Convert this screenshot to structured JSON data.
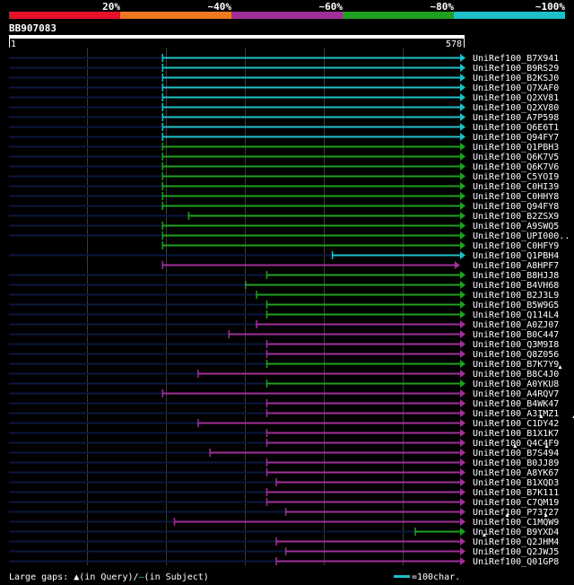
{
  "query_id": "BB907083",
  "query_start": "1",
  "query_end": "578",
  "legend": {
    "bins": [
      {
        "label": "20%",
        "color": "#e8102a"
      },
      {
        "label": "~40%",
        "color": "#f07820"
      },
      {
        "label": "~60%",
        "color": "#a03098"
      },
      {
        "label": "~80%",
        "color": "#20a020"
      },
      {
        "label": "~100%",
        "color": "#20c0c8"
      }
    ]
  },
  "footer": {
    "gaps_label": "Large gaps: ",
    "query_gap_text": "(in Query)/",
    "subject_gap_text": "(in Subject)",
    "scale_text": "=100char."
  },
  "chart_data": {
    "type": "alignment-overview",
    "query_length": 578,
    "colors": {
      "cyan": "#20c0c8",
      "green": "#20a020",
      "purple": "#a03098",
      "prefix": "#0a1840"
    },
    "hits": [
      {
        "label": "UniRef100_B7X941",
        "start": 1,
        "end": 578,
        "match_start": 195,
        "color": "cyan",
        "gaps": []
      },
      {
        "label": "UniRef100_B9RS29",
        "start": 1,
        "end": 578,
        "match_start": 195,
        "color": "cyan",
        "gaps": []
      },
      {
        "label": "UniRef100_B2KSJ0",
        "start": 1,
        "end": 578,
        "match_start": 195,
        "color": "cyan",
        "gaps": []
      },
      {
        "label": "UniRef100_Q7XAF0",
        "start": 1,
        "end": 578,
        "match_start": 195,
        "color": "cyan",
        "gaps": []
      },
      {
        "label": "UniRef100_Q2XV81",
        "start": 1,
        "end": 578,
        "match_start": 195,
        "color": "cyan",
        "gaps": []
      },
      {
        "label": "UniRef100_Q2XV80",
        "start": 1,
        "end": 578,
        "match_start": 195,
        "color": "cyan",
        "gaps": []
      },
      {
        "label": "UniRef100_A7P598",
        "start": 1,
        "end": 578,
        "match_start": 195,
        "color": "cyan",
        "gaps": []
      },
      {
        "label": "UniRef100_Q6E6T1",
        "start": 1,
        "end": 578,
        "match_start": 195,
        "color": "cyan",
        "gaps": []
      },
      {
        "label": "UniRef100_Q94FY7",
        "start": 1,
        "end": 578,
        "match_start": 195,
        "color": "cyan",
        "gaps": []
      },
      {
        "label": "UniRef100_Q1PBH3",
        "start": 1,
        "end": 578,
        "match_start": 195,
        "color": "green",
        "gaps": []
      },
      {
        "label": "UniRef100_Q6K7V5",
        "start": 1,
        "end": 578,
        "match_start": 195,
        "color": "green",
        "gaps": []
      },
      {
        "label": "UniRef100_Q6K7V6",
        "start": 1,
        "end": 578,
        "match_start": 195,
        "color": "green",
        "gaps": []
      },
      {
        "label": "UniRef100_C5YOI9",
        "start": 1,
        "end": 578,
        "match_start": 195,
        "color": "green",
        "gaps": []
      },
      {
        "label": "UniRef100_C0HI39",
        "start": 1,
        "end": 578,
        "match_start": 195,
        "color": "green",
        "gaps": []
      },
      {
        "label": "UniRef100_C0HHY8",
        "start": 1,
        "end": 578,
        "match_start": 195,
        "color": "green",
        "gaps": []
      },
      {
        "label": "UniRef100_Q94FY8",
        "start": 1,
        "end": 578,
        "match_start": 195,
        "color": "green",
        "gaps": []
      },
      {
        "label": "UniRef100_B2ZSX9",
        "start": 1,
        "end": 578,
        "match_start": 228,
        "color": "green",
        "gaps": []
      },
      {
        "label": "UniRef100_A9SWQ5",
        "start": 1,
        "end": 578,
        "match_start": 195,
        "color": "green",
        "gaps": []
      },
      {
        "label": "UniRef100_UPI000..",
        "start": 1,
        "end": 578,
        "match_start": 195,
        "color": "green",
        "gaps": []
      },
      {
        "label": "UniRef100_C0HFY9",
        "start": 195,
        "end": 628,
        "match_start": 195,
        "color": "green",
        "gaps": []
      },
      {
        "label": "UniRef100_Q1PBH4",
        "start": 1,
        "end": 578,
        "match_start": 410,
        "color": "cyan",
        "gaps": []
      },
      {
        "label": "UniRef100_A8HPF7",
        "start": 195,
        "end": 571,
        "match_start": 195,
        "color": "purple",
        "gaps": []
      },
      {
        "label": "UniRef100_B8HJJ8",
        "start": 1,
        "end": 578,
        "match_start": 327,
        "color": "green",
        "gaps": []
      },
      {
        "label": "UniRef100_B4VH68",
        "start": 1,
        "end": 578,
        "match_start": 300,
        "color": "green",
        "gaps": []
      },
      {
        "label": "UniRef100_B2J3L9",
        "start": 1,
        "end": 578,
        "match_start": 314,
        "color": "green",
        "gaps": []
      },
      {
        "label": "UniRef100_B5W9G5",
        "start": 1,
        "end": 578,
        "match_start": 327,
        "color": "green",
        "gaps": []
      },
      {
        "label": "UniRef100_Q114L4",
        "start": 1,
        "end": 578,
        "match_start": 327,
        "color": "green",
        "gaps": []
      },
      {
        "label": "UniRef100_A0ZJ07",
        "start": 1,
        "end": 578,
        "match_start": 314,
        "color": "purple",
        "gaps": []
      },
      {
        "label": "UniRef100_B0C447",
        "start": 1,
        "end": 578,
        "match_start": 279,
        "color": "purple",
        "gaps": []
      },
      {
        "label": "UniRef100_Q3M9I8",
        "start": 1,
        "end": 578,
        "match_start": 327,
        "color": "purple",
        "gaps": []
      },
      {
        "label": "UniRef100_Q8Z056",
        "start": 1,
        "end": 578,
        "match_start": 327,
        "color": "purple",
        "gaps": []
      },
      {
        "label": "UniRef100_B7K7Y9",
        "start": 1,
        "end": 578,
        "match_start": 327,
        "color": "green",
        "gaps": []
      },
      {
        "label": "UniRef100_B8C4J0",
        "start": 1,
        "end": 578,
        "match_start": 240,
        "color": "purple",
        "gaps": [
          {
            "type": "query",
            "pos": 699
          }
        ]
      },
      {
        "label": "UniRef100_A0YKU8",
        "start": 1,
        "end": 578,
        "match_start": 327,
        "color": "green",
        "gaps": []
      },
      {
        "label": "UniRef100_A4RQV7",
        "start": 1,
        "end": 578,
        "match_start": 195,
        "color": "purple",
        "gaps": []
      },
      {
        "label": "UniRef100_B4WK47",
        "start": 1,
        "end": 578,
        "match_start": 327,
        "color": "purple",
        "gaps": []
      },
      {
        "label": "UniRef100_A3IMZ1",
        "start": 1,
        "end": 578,
        "match_start": 327,
        "color": "purple",
        "gaps": []
      },
      {
        "label": "UniRef100_C1DY42",
        "start": 1,
        "end": 578,
        "match_start": 240,
        "color": "purple",
        "gaps": [
          {
            "type": "query",
            "pos": 675
          },
          {
            "type": "query",
            "pos": 717
          }
        ]
      },
      {
        "label": "UniRef100_B1X1K7",
        "start": 1,
        "end": 578,
        "match_start": 327,
        "color": "purple",
        "gaps": []
      },
      {
        "label": "UniRef100_Q4C4F9",
        "start": 1,
        "end": 578,
        "match_start": 327,
        "color": "purple",
        "gaps": []
      },
      {
        "label": "UniRef100_B7S494",
        "start": 1,
        "end": 578,
        "match_start": 255,
        "color": "purple",
        "gaps": [
          {
            "type": "query",
            "pos": 642
          },
          {
            "type": "query",
            "pos": 682
          }
        ]
      },
      {
        "label": "UniRef100_B0JJ89",
        "start": 1,
        "end": 578,
        "match_start": 327,
        "color": "purple",
        "gaps": []
      },
      {
        "label": "UniRef100_A8YK67",
        "start": 1,
        "end": 578,
        "match_start": 327,
        "color": "purple",
        "gaps": []
      },
      {
        "label": "UniRef100_B1XQD3",
        "start": 1,
        "end": 578,
        "match_start": 339,
        "color": "purple",
        "gaps": []
      },
      {
        "label": "UniRef100_B7K111",
        "start": 1,
        "end": 578,
        "match_start": 327,
        "color": "purple",
        "gaps": []
      },
      {
        "label": "UniRef100_C7QM19",
        "start": 1,
        "end": 578,
        "match_start": 327,
        "color": "purple",
        "gaps": []
      },
      {
        "label": "UniRef100_P73727",
        "start": 1,
        "end": 578,
        "match_start": 351,
        "color": "purple",
        "gaps": []
      },
      {
        "label": "UniRef100_C1MQW9",
        "start": 1,
        "end": 578,
        "match_start": 210,
        "color": "purple",
        "gaps": [
          {
            "type": "query",
            "pos": 632
          },
          {
            "type": "query",
            "pos": 681
          }
        ]
      },
      {
        "label": "UniRef100_B9YXD4",
        "start": 1,
        "end": 578,
        "match_start": 515,
        "color": "green",
        "gaps": []
      },
      {
        "label": "UniRef100_Q2JHM4",
        "start": 1,
        "end": 578,
        "match_start": 339,
        "color": "purple",
        "gaps": [
          {
            "type": "query",
            "pos": 603
          }
        ]
      },
      {
        "label": "UniRef100_Q2JWJ5",
        "start": 1,
        "end": 578,
        "match_start": 351,
        "color": "purple",
        "gaps": []
      },
      {
        "label": "UniRef100_Q01GP8",
        "start": 1,
        "end": 578,
        "match_start": 339,
        "color": "purple",
        "gaps": []
      }
    ]
  }
}
